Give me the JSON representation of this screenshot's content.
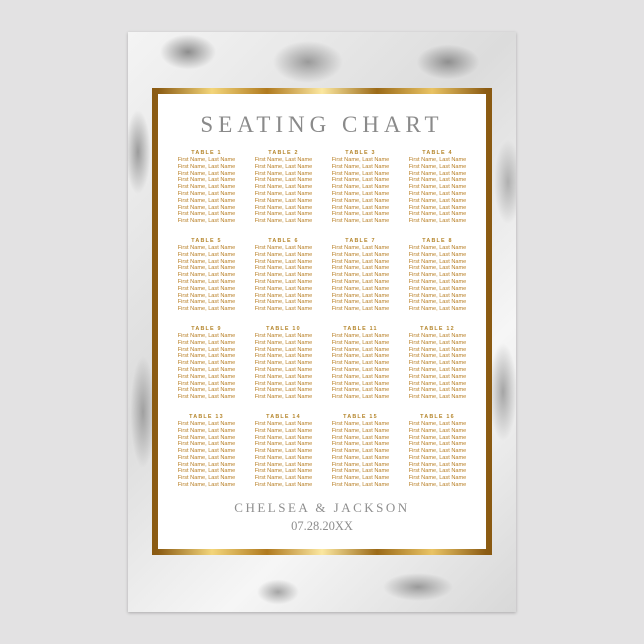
{
  "poster": {
    "title": "SEATING CHART",
    "couple": "CHELSEA & JACKSON",
    "date": "07.28.20XX",
    "accent_color": "#b77d22",
    "frame_color": "#c9952d",
    "background": "silver marble",
    "tables": [
      {
        "label": "TABLE 1",
        "names": [
          "First Name, Last Name",
          "First Name, Last Name",
          "First Name, Last Name",
          "First Name, Last Name",
          "First Name, Last Name",
          "First Name, Last Name",
          "First Name, Last Name",
          "First Name, Last Name",
          "First Name, Last Name",
          "First Name, Last Name"
        ]
      },
      {
        "label": "TABLE 2",
        "names": [
          "First Name, Last Name",
          "First Name, Last Name",
          "First Name, Last Name",
          "First Name, Last Name",
          "First Name, Last Name",
          "First Name, Last Name",
          "First Name, Last Name",
          "First Name, Last Name",
          "First Name, Last Name",
          "First Name, Last Name"
        ]
      },
      {
        "label": "TABLE 3",
        "names": [
          "First Name, Last Name",
          "First Name, Last Name",
          "First Name, Last Name",
          "First Name, Last Name",
          "First Name, Last Name",
          "First Name, Last Name",
          "First Name, Last Name",
          "First Name, Last Name",
          "First Name, Last Name",
          "First Name, Last Name"
        ]
      },
      {
        "label": "TABLE 4",
        "names": [
          "First Name, Last Name",
          "First Name, Last Name",
          "First Name, Last Name",
          "First Name, Last Name",
          "First Name, Last Name",
          "First Name, Last Name",
          "First Name, Last Name",
          "First Name, Last Name",
          "First Name, Last Name",
          "First Name, Last Name"
        ]
      },
      {
        "label": "TABLE 5",
        "names": [
          "First Name, Last Name",
          "First Name, Last Name",
          "First Name, Last Name",
          "First Name, Last Name",
          "First Name, Last Name",
          "First Name, Last Name",
          "First Name, Last Name",
          "First Name, Last Name",
          "First Name, Last Name",
          "First Name, Last Name"
        ]
      },
      {
        "label": "TABLE 6",
        "names": [
          "First Name, Last Name",
          "First Name, Last Name",
          "First Name, Last Name",
          "First Name, Last Name",
          "First Name, Last Name",
          "First Name, Last Name",
          "First Name, Last Name",
          "First Name, Last Name",
          "First Name, Last Name",
          "First Name, Last Name"
        ]
      },
      {
        "label": "TABLE 7",
        "names": [
          "First Name, Last Name",
          "First Name, Last Name",
          "First Name, Last Name",
          "First Name, Last Name",
          "First Name, Last Name",
          "First Name, Last Name",
          "First Name, Last Name",
          "First Name, Last Name",
          "First Name, Last Name",
          "First Name, Last Name"
        ]
      },
      {
        "label": "TABLE 8",
        "names": [
          "First Name, Last Name",
          "First Name, Last Name",
          "First Name, Last Name",
          "First Name, Last Name",
          "First Name, Last Name",
          "First Name, Last Name",
          "First Name, Last Name",
          "First Name, Last Name",
          "First Name, Last Name",
          "First Name, Last Name"
        ]
      },
      {
        "label": "TABLE 9",
        "names": [
          "First Name, Last Name",
          "First Name, Last Name",
          "First Name, Last Name",
          "First Name, Last Name",
          "First Name, Last Name",
          "First Name, Last Name",
          "First Name, Last Name",
          "First Name, Last Name",
          "First Name, Last Name",
          "First Name, Last Name"
        ]
      },
      {
        "label": "TABLE 10",
        "names": [
          "First Name, Last Name",
          "First Name, Last Name",
          "First Name, Last Name",
          "First Name, Last Name",
          "First Name, Last Name",
          "First Name, Last Name",
          "First Name, Last Name",
          "First Name, Last Name",
          "First Name, Last Name",
          "First Name, Last Name"
        ]
      },
      {
        "label": "TABLE 11",
        "names": [
          "First Name, Last Name",
          "First Name, Last Name",
          "First Name, Last Name",
          "First Name, Last Name",
          "First Name, Last Name",
          "First Name, Last Name",
          "First Name, Last Name",
          "First Name, Last Name",
          "First Name, Last Name",
          "First Name, Last Name"
        ]
      },
      {
        "label": "TABLE 12",
        "names": [
          "First Name, Last Name",
          "First Name, Last Name",
          "First Name, Last Name",
          "First Name, Last Name",
          "First Name, Last Name",
          "First Name, Last Name",
          "First Name, Last Name",
          "First Name, Last Name",
          "First Name, Last Name",
          "First Name, Last Name"
        ]
      },
      {
        "label": "TABLE 13",
        "names": [
          "First Name, Last Name",
          "First Name, Last Name",
          "First Name, Last Name",
          "First Name, Last Name",
          "First Name, Last Name",
          "First Name, Last Name",
          "First Name, Last Name",
          "First Name, Last Name",
          "First Name, Last Name",
          "First Name, Last Name"
        ]
      },
      {
        "label": "TABLE 14",
        "names": [
          "First Name, Last Name",
          "First Name, Last Name",
          "First Name, Last Name",
          "First Name, Last Name",
          "First Name, Last Name",
          "First Name, Last Name",
          "First Name, Last Name",
          "First Name, Last Name",
          "First Name, Last Name",
          "First Name, Last Name"
        ]
      },
      {
        "label": "TABLE 15",
        "names": [
          "First Name, Last Name",
          "First Name, Last Name",
          "First Name, Last Name",
          "First Name, Last Name",
          "First Name, Last Name",
          "First Name, Last Name",
          "First Name, Last Name",
          "First Name, Last Name",
          "First Name, Last Name",
          "First Name, Last Name"
        ]
      },
      {
        "label": "TABLE 16",
        "names": [
          "First Name, Last Name",
          "First Name, Last Name",
          "First Name, Last Name",
          "First Name, Last Name",
          "First Name, Last Name",
          "First Name, Last Name",
          "First Name, Last Name",
          "First Name, Last Name",
          "First Name, Last Name",
          "First Name, Last Name"
        ]
      }
    ]
  }
}
